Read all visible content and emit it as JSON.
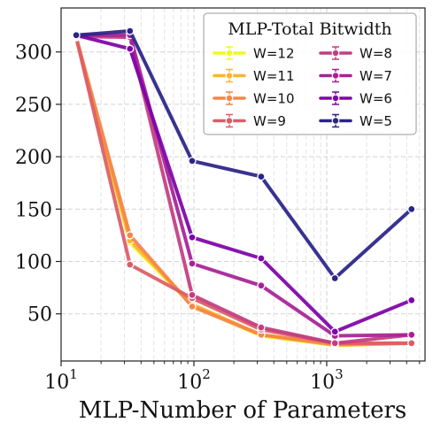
{
  "chart_data": {
    "type": "line",
    "xlabel": "MLP-Number of Parameters",
    "ylabel": "",
    "xscale": "log",
    "xlim": [
      10,
      5500
    ],
    "ylim": [
      5,
      342
    ],
    "x_ticks": [
      {
        "value": 10,
        "base": "10",
        "exp": "1"
      },
      {
        "value": 100,
        "base": "10",
        "exp": "2"
      },
      {
        "value": 1000,
        "base": "10",
        "exp": "3"
      }
    ],
    "y_ticks": [
      50,
      100,
      150,
      200,
      250,
      300
    ],
    "grid": true,
    "legend": {
      "title": "MLP-Total Bitwidth",
      "placement": "top-right",
      "columns": 2
    },
    "x": [
      13,
      33,
      97,
      321,
      1153,
      4353
    ],
    "series": [
      {
        "name": "W=12",
        "color": "#f0f921",
        "values": [
          313,
          118,
          58,
          29,
          20,
          22
        ]
      },
      {
        "name": "W=11",
        "color": "#fdb42f",
        "values": [
          313,
          120,
          59,
          30,
          20,
          22
        ]
      },
      {
        "name": "W=10",
        "color": "#f38748",
        "values": [
          314,
          125,
          57,
          30,
          21,
          22
        ]
      },
      {
        "name": "W=9",
        "color": "#db5c68",
        "values": [
          314,
          97,
          65,
          35,
          22,
          22
        ]
      },
      {
        "name": "W=8",
        "color": "#c33d80",
        "values": [
          315,
          314,
          68,
          37,
          22,
          30
        ]
      },
      {
        "name": "W=7",
        "color": "#a72197",
        "values": [
          316,
          316,
          98,
          77,
          29,
          30
        ]
      },
      {
        "name": "W=6",
        "color": "#7e03a8",
        "values": [
          316,
          303,
          123,
          103,
          33,
          63
        ]
      },
      {
        "name": "W=5",
        "color": "#2a2487",
        "values": [
          316,
          320,
          196,
          181,
          84,
          150
        ]
      }
    ]
  }
}
